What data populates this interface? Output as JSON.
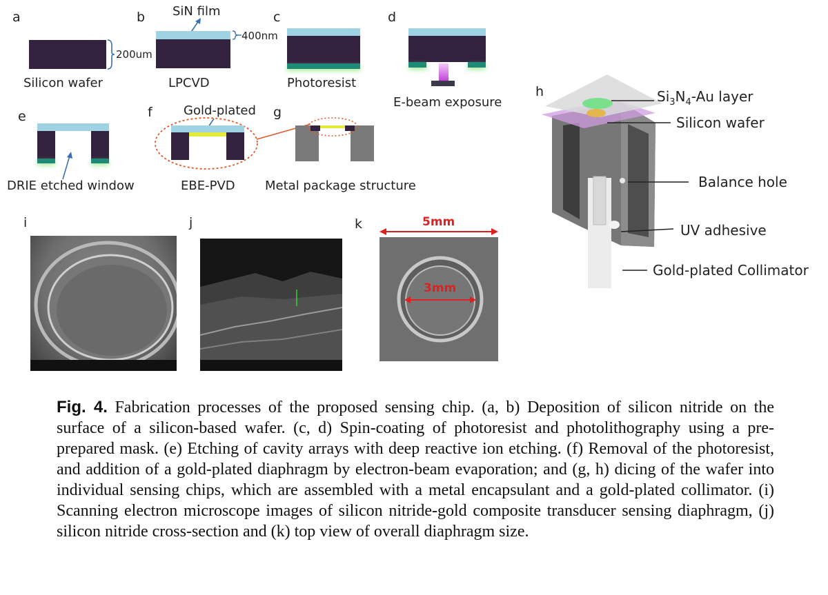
{
  "panels": {
    "a": {
      "letter": "a",
      "label": "Silicon wafer",
      "dim": "200um"
    },
    "b": {
      "letter": "b",
      "label": "LPCVD",
      "film": "SiN film",
      "dim": "400nm"
    },
    "c": {
      "letter": "c",
      "label": "Photoresist"
    },
    "d": {
      "letter": "d",
      "label": "E-beam exposure"
    },
    "e": {
      "letter": "e",
      "label": "DRIE etched window"
    },
    "f": {
      "letter": "f",
      "label": "EBE-PVD",
      "note": "Gold-plated"
    },
    "g": {
      "letter": "g",
      "label": "Metal package structure"
    },
    "h": {
      "letter": "h",
      "labels": {
        "layer_pre": "Si",
        "layer_sub1": "3",
        "layer_mid": "N",
        "layer_sub2": "4",
        "layer_post": "-Au layer",
        "wafer": "Silicon wafer",
        "balance": "Balance hole",
        "uv": "UV adhesive",
        "collimator": "Gold-plated Collimator"
      }
    },
    "i": {
      "letter": "i"
    },
    "j": {
      "letter": "j"
    },
    "k": {
      "letter": "k",
      "outer": "5mm",
      "inner": "3mm"
    }
  },
  "caption": {
    "fig": "Fig. 4.",
    "text": " Fabrication processes of the proposed sensing chip. (a, b) Deposition of silicon nitride on the surface of a silicon-based wafer.  (c, d) Spin-coating of photoresist and photolithography using a pre-prepared mask. (e) Etching of cavity arrays with deep reactive ion etching.  (f) Removal of the photoresist, and addition of a gold-plated diaphragm by electron-beam evaporation; and (g, h) dicing of the wafer into individual sensing chips, which are assembled with a metal encapsulant and a gold-plated collimator. (i) Scanning electron microscope images of silicon nitride-gold composite transducer sensing diaphragm, (j) silicon nitride cross-section and (k) top view of overall diaphragm size."
  },
  "colors": {
    "wafer": "#33223f",
    "sin": "#9fd3e3",
    "resist": "#1f8a76",
    "gold": "#e3ea3a",
    "highlight": "#e05a2b",
    "measure": "#e02020"
  }
}
